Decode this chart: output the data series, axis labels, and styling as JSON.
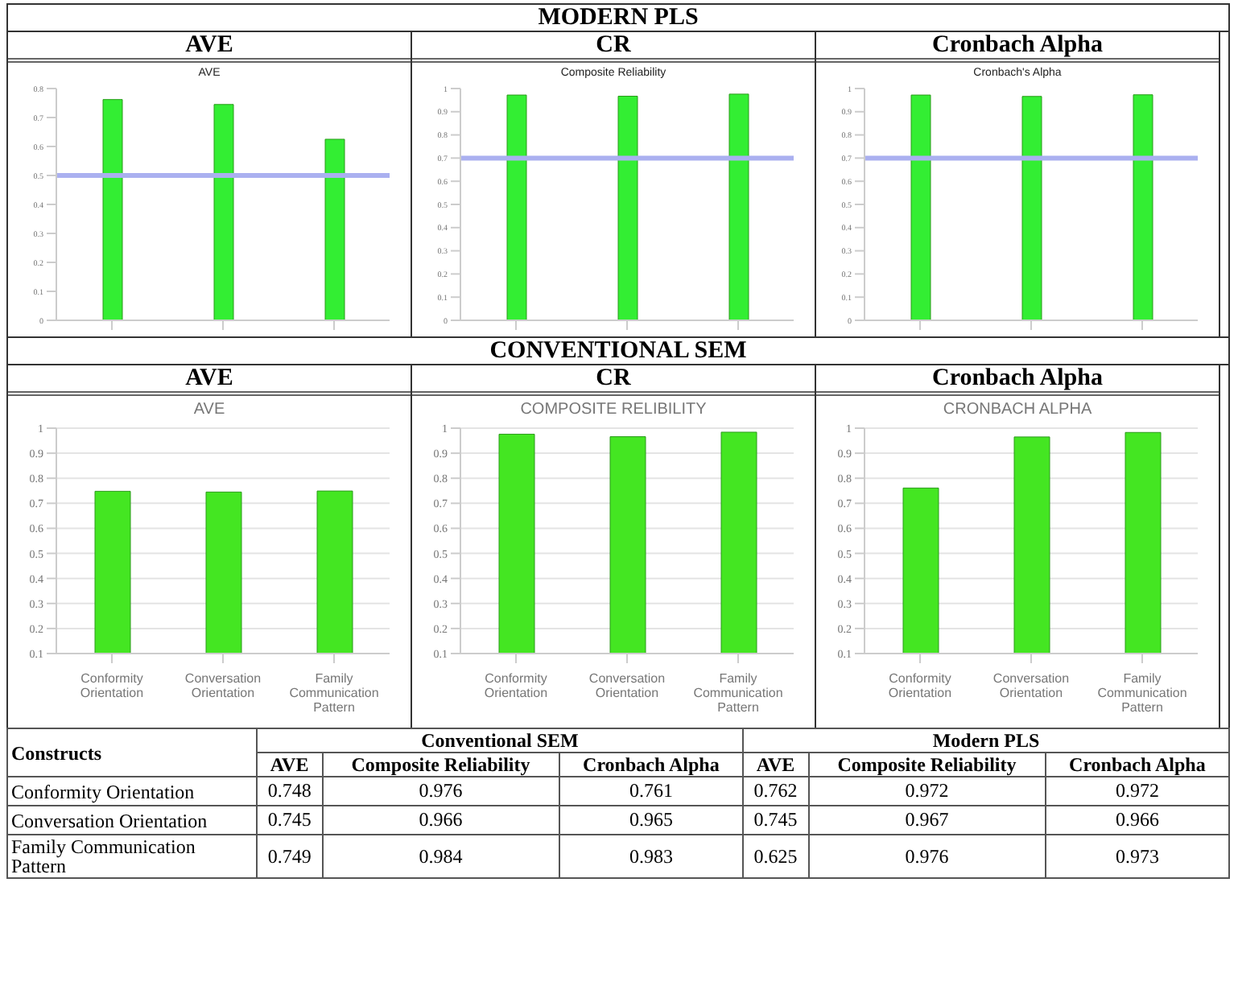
{
  "chart_data": [
    {
      "type": "bar",
      "title": "AVE",
      "subtitle": "AVE",
      "annotations": [
        "MODERN PLS"
      ],
      "categories": [
        null,
        null,
        null
      ],
      "values": [
        0.762,
        0.745,
        0.625
      ],
      "color": "#33ee33",
      "ylim": [
        0,
        0.8
      ],
      "yticks": [
        0,
        0.1,
        0.2,
        0.3,
        0.4,
        0.5,
        0.6,
        0.7,
        0.8
      ],
      "ref_lines": [
        {
          "axis": "y",
          "value": 0.5,
          "color": "#aab0f0"
        }
      ]
    },
    {
      "type": "bar",
      "title": "CR",
      "subtitle": "Composite Reliability",
      "categories": [
        null,
        null,
        null
      ],
      "values": [
        0.972,
        0.967,
        0.976
      ],
      "color": "#33ee33",
      "ylim": [
        0,
        1
      ],
      "yticks": [
        0,
        0.1,
        0.2,
        0.3,
        0.4,
        0.5,
        0.6,
        0.7,
        0.8,
        0.9,
        1
      ],
      "ref_lines": [
        {
          "axis": "y",
          "value": 0.7,
          "color": "#aab0f0"
        }
      ]
    },
    {
      "type": "bar",
      "title": "Cronbach Alpha",
      "subtitle": "Cronbach's Alpha",
      "categories": [
        null,
        null,
        null
      ],
      "values": [
        0.972,
        0.966,
        0.973
      ],
      "color": "#33ee33",
      "ylim": [
        0,
        1
      ],
      "yticks": [
        0,
        0.1,
        0.2,
        0.3,
        0.4,
        0.5,
        0.6,
        0.7,
        0.8,
        0.9,
        1
      ],
      "ref_lines": [
        {
          "axis": "y",
          "value": 0.7,
          "color": "#aab0f0"
        }
      ]
    },
    {
      "type": "bar",
      "title": "AVE",
      "subtitle": "AVE",
      "annotations": [
        "CONVENTIONAL SEM"
      ],
      "categories": [
        "Conformity Orientation",
        "Conversation Orientation",
        "Family Communication Pattern"
      ],
      "values": [
        0.748,
        0.745,
        0.749
      ],
      "color": "#44e622",
      "ylim": [
        0.1,
        1
      ],
      "yticks": [
        0.1,
        0.2,
        0.3,
        0.4,
        0.5,
        0.6,
        0.7,
        0.8,
        0.9,
        1
      ],
      "grid": "y"
    },
    {
      "type": "bar",
      "title": "CR",
      "subtitle": "COMPOSITE RELIBILITY",
      "categories": [
        "Conformity Orientation",
        "Conversation Orientation",
        "Family Communication Pattern"
      ],
      "values": [
        0.976,
        0.966,
        0.984
      ],
      "color": "#44e622",
      "ylim": [
        0.1,
        1
      ],
      "yticks": [
        0.1,
        0.2,
        0.3,
        0.4,
        0.5,
        0.6,
        0.7,
        0.8,
        0.9,
        1
      ],
      "grid": "y"
    },
    {
      "type": "bar",
      "title": "Cronbach Alpha",
      "subtitle": "CRONBACH ALPHA",
      "categories": [
        "Conformity Orientation",
        "Conversation Orientation",
        "Family Communication Pattern"
      ],
      "values": [
        0.761,
        0.965,
        0.983
      ],
      "color": "#44e622",
      "ylim": [
        0.1,
        1
      ],
      "yticks": [
        0.1,
        0.2,
        0.3,
        0.4,
        0.5,
        0.6,
        0.7,
        0.8,
        0.9,
        1
      ],
      "grid": "y"
    },
    {
      "type": "other",
      "data_labels": true,
      "annotations": [
        "Constructs",
        "Conventional SEM",
        "Modern PLS"
      ],
      "categories": [
        "Conformity Orientation",
        "Conversation Orientation",
        "Family Communication Pattern"
      ],
      "series": [
        {
          "name": "AVE",
          "values": [
            0.748,
            0.745,
            0.749
          ]
        },
        {
          "name": "Composite Reliability",
          "values": [
            0.976,
            0.966,
            0.984
          ]
        },
        {
          "name": "Cronbach Alpha",
          "values": [
            0.761,
            0.965,
            0.983
          ]
        },
        {
          "name": "AVE",
          "values": [
            0.762,
            0.745,
            0.625
          ]
        },
        {
          "name": "Composite Reliability",
          "values": [
            0.972,
            0.967,
            0.976
          ]
        },
        {
          "name": "Cronbach Alpha",
          "values": [
            0.972,
            0.966,
            0.973
          ]
        }
      ]
    }
  ]
}
